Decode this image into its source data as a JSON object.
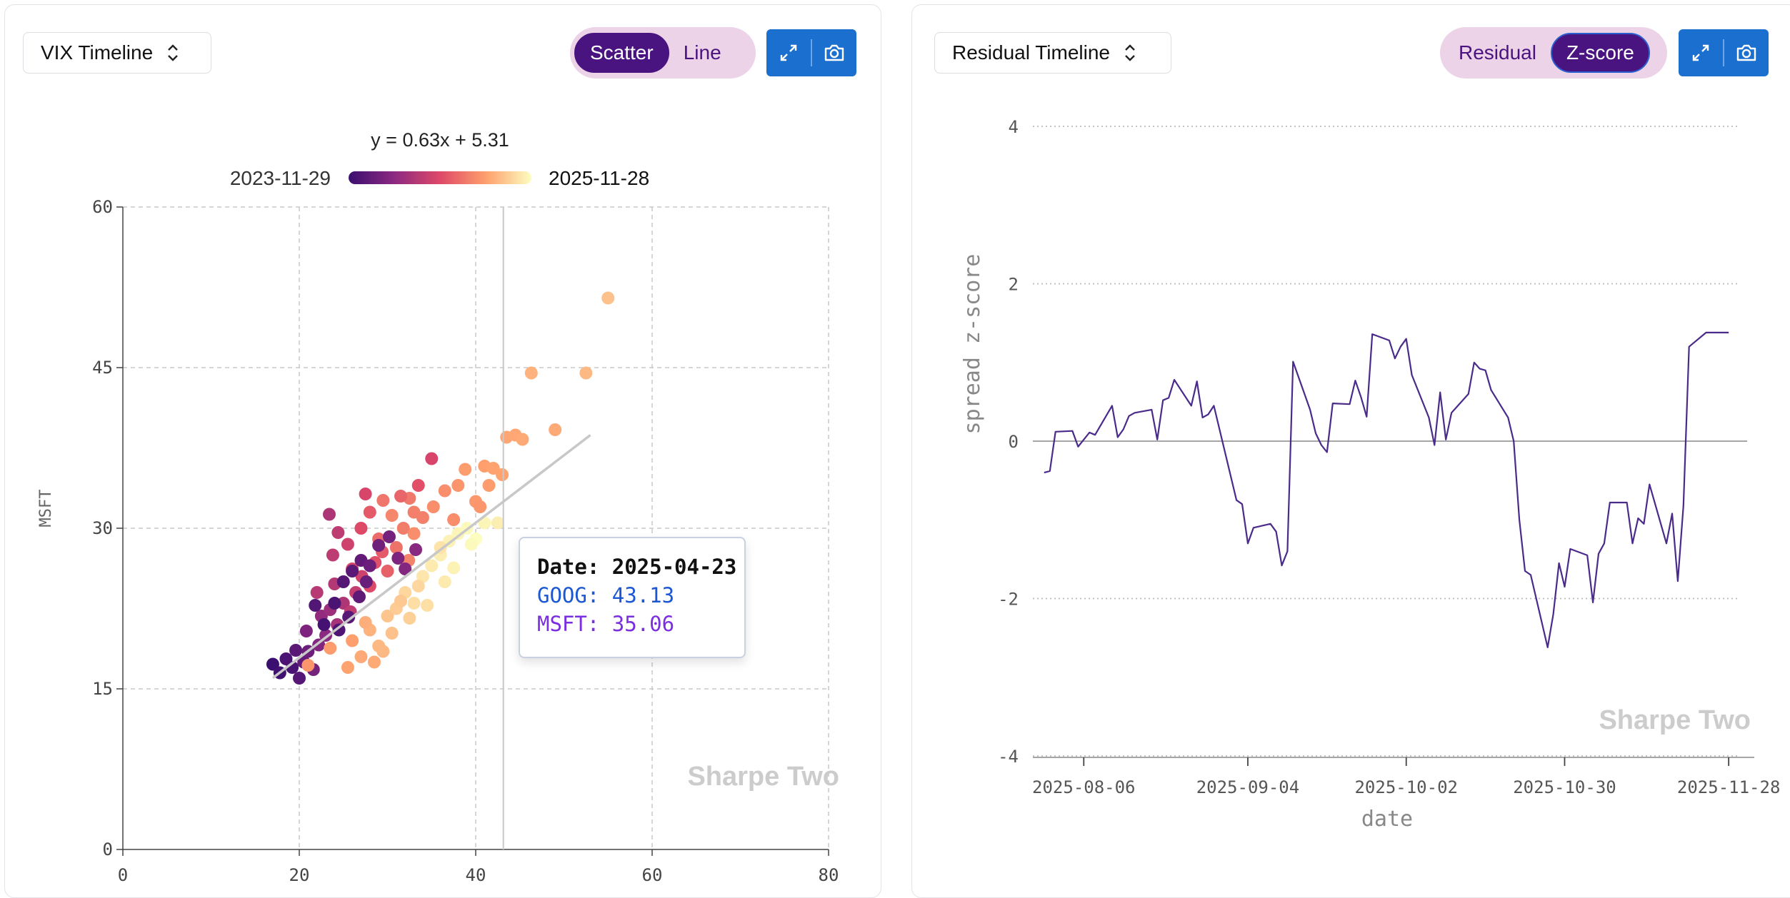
{
  "left_panel": {
    "select_label": "VIX Timeline",
    "toggle": {
      "options": [
        "Scatter",
        "Line"
      ],
      "active": "Scatter"
    },
    "actions": [
      "expand-icon",
      "camera-icon"
    ]
  },
  "right_panel": {
    "select_label": "Residual Timeline",
    "toggle": {
      "options": [
        "Residual",
        "Z-score"
      ],
      "active": "Z-score"
    },
    "actions": [
      "expand-icon",
      "camera-icon"
    ]
  },
  "tooltip": {
    "date_label": "Date: 2025-04-23",
    "goog_label": "GOOG: 43.13",
    "msft_label": "MSFT: 35.06"
  },
  "colors": {
    "accent": "#4a1480",
    "toggle_bg": "#ecd3e8",
    "action_blue": "#1b6fce",
    "line": "#4a2a8a"
  },
  "chart_data": [
    {
      "type": "scatter",
      "title": "y = 0.63x + 5.31",
      "colorbar": {
        "start_label": "2023-11-29",
        "end_label": "2025-11-28",
        "colors": [
          "#3b0f70",
          "#8c2981",
          "#de4968",
          "#fe9f6d",
          "#fcfdbf"
        ]
      },
      "ylabel": "MSFT",
      "xlim": [
        0,
        80
      ],
      "ylim": [
        0,
        60
      ],
      "xticks": [
        0,
        20,
        40,
        60,
        80
      ],
      "yticks": [
        0,
        15,
        30,
        45,
        60
      ],
      "grid": true,
      "regression": {
        "slope": 0.63,
        "intercept": 5.31,
        "x_range": [
          17,
          53
        ]
      },
      "crosshair_x": 43.13,
      "watermark": "Sharpe Two",
      "points": [
        [
          17.0,
          17.3,
          0
        ],
        [
          17.8,
          16.5,
          0.02
        ],
        [
          18.5,
          17.8,
          0.05
        ],
        [
          19.2,
          17.0,
          0.04
        ],
        [
          20.0,
          16.0,
          0.08
        ],
        [
          19.6,
          18.6,
          0.1
        ],
        [
          20.5,
          17.5,
          0.12
        ],
        [
          21.0,
          18.5,
          0.15
        ],
        [
          21.6,
          16.8,
          0.18
        ],
        [
          20.8,
          20.4,
          0.2
        ],
        [
          22.2,
          19.1,
          0.22
        ],
        [
          23.0,
          20.0,
          0.25
        ],
        [
          22.5,
          21.8,
          0.27
        ],
        [
          23.5,
          22.4,
          0.3
        ],
        [
          24.3,
          21.0,
          0.33
        ],
        [
          25.0,
          23.0,
          0.35
        ],
        [
          24.0,
          24.8,
          0.37
        ],
        [
          25.8,
          22.2,
          0.4
        ],
        [
          26.4,
          24.0,
          0.42
        ],
        [
          27.1,
          25.5,
          0.45
        ],
        [
          26.0,
          26.2,
          0.47
        ],
        [
          28.0,
          24.6,
          0.5
        ],
        [
          28.6,
          26.8,
          0.52
        ],
        [
          29.4,
          27.8,
          0.55
        ],
        [
          30.0,
          26.0,
          0.57
        ],
        [
          29.0,
          29.0,
          0.6
        ],
        [
          31.0,
          28.2,
          0.62
        ],
        [
          31.8,
          30.0,
          0.65
        ],
        [
          32.4,
          27.0,
          0.67
        ],
        [
          33.0,
          29.5,
          0.7
        ],
        [
          30.5,
          31.2,
          0.68
        ],
        [
          32.5,
          32.8,
          0.64
        ],
        [
          34.0,
          31.0,
          0.66
        ],
        [
          35.2,
          32.0,
          0.7
        ],
        [
          22.0,
          24.0,
          0.38
        ],
        [
          23.8,
          27.5,
          0.4
        ],
        [
          25.5,
          28.5,
          0.45
        ],
        [
          27.0,
          30.0,
          0.5
        ],
        [
          28.0,
          31.5,
          0.55
        ],
        [
          23.4,
          31.3,
          0.35
        ],
        [
          24.4,
          29.6,
          0.4
        ],
        [
          35.0,
          36.5,
          0.48
        ],
        [
          33.5,
          34.0,
          0.52
        ],
        [
          31.5,
          33.0,
          0.58
        ],
        [
          29.5,
          32.6,
          0.63
        ],
        [
          27.5,
          33.2,
          0.48
        ],
        [
          24.0,
          23.0,
          0.05
        ],
        [
          25.0,
          25.0,
          0.08
        ],
        [
          26.0,
          26.0,
          0.1
        ],
        [
          27.0,
          27.0,
          0.12
        ],
        [
          28.0,
          26.5,
          0.15
        ],
        [
          24.5,
          20.5,
          0.06
        ],
        [
          25.6,
          21.7,
          0.09
        ],
        [
          26.8,
          23.6,
          0.11
        ],
        [
          27.6,
          25.0,
          0.14
        ],
        [
          29.0,
          28.4,
          0.16
        ],
        [
          30.2,
          29.2,
          0.18
        ],
        [
          31.2,
          27.2,
          0.2
        ],
        [
          32.0,
          26.2,
          0.22
        ],
        [
          33.2,
          28.0,
          0.24
        ],
        [
          22.8,
          21.0,
          0.03
        ],
        [
          21.8,
          22.8,
          0.07
        ],
        [
          26.0,
          19.5,
          0.75
        ],
        [
          27.0,
          18.0,
          0.78
        ],
        [
          28.0,
          20.5,
          0.8
        ],
        [
          29.0,
          19.0,
          0.82
        ],
        [
          30.0,
          21.8,
          0.85
        ],
        [
          31.0,
          22.5,
          0.87
        ],
        [
          32.0,
          24.0,
          0.9
        ],
        [
          33.0,
          23.0,
          0.92
        ],
        [
          34.0,
          25.5,
          0.94
        ],
        [
          35.0,
          26.5,
          0.95
        ],
        [
          36.0,
          27.5,
          0.96
        ],
        [
          37.0,
          28.8,
          0.97
        ],
        [
          38.0,
          29.5,
          0.98
        ],
        [
          39.0,
          30.0,
          0.99
        ],
        [
          40.0,
          29.0,
          1.0
        ],
        [
          41.0,
          30.5,
          0.98
        ],
        [
          42.5,
          30.5,
          0.96
        ],
        [
          29.5,
          18.5,
          0.82
        ],
        [
          30.5,
          20.2,
          0.84
        ],
        [
          31.5,
          23.2,
          0.86
        ],
        [
          32.5,
          21.6,
          0.88
        ],
        [
          33.5,
          24.6,
          0.9
        ],
        [
          34.5,
          22.8,
          0.92
        ],
        [
          36.5,
          25.0,
          0.95
        ],
        [
          37.5,
          26.3,
          0.97
        ],
        [
          28.5,
          17.5,
          0.78
        ],
        [
          25.5,
          17.0,
          0.76
        ],
        [
          27.5,
          21.2,
          0.79
        ],
        [
          23.5,
          18.8,
          0.74
        ],
        [
          21.0,
          17.2,
          0.72
        ],
        [
          36.0,
          28.2,
          0.93
        ],
        [
          39.5,
          28.5,
          0.99
        ],
        [
          33.0,
          31.5,
          0.66
        ],
        [
          36.5,
          33.5,
          0.7
        ],
        [
          38.0,
          34.0,
          0.72
        ],
        [
          38.8,
          35.5,
          0.74
        ],
        [
          40.0,
          32.5,
          0.73
        ],
        [
          41.5,
          34.0,
          0.74
        ],
        [
          43.0,
          35.0,
          0.76
        ],
        [
          41.0,
          35.8,
          0.75
        ],
        [
          42.0,
          35.6,
          0.76
        ],
        [
          43.5,
          38.5,
          0.77
        ],
        [
          44.5,
          38.7,
          0.77
        ],
        [
          45.3,
          38.3,
          0.78
        ],
        [
          49.0,
          39.2,
          0.78
        ],
        [
          46.3,
          44.5,
          0.8
        ],
        [
          52.5,
          44.5,
          0.82
        ],
        [
          55.0,
          51.5,
          0.84
        ],
        [
          40.5,
          32.0,
          0.72
        ],
        [
          37.5,
          30.8,
          0.7
        ]
      ]
    },
    {
      "type": "line",
      "ylabel": "spread z-score",
      "xlabel": "date",
      "ylim": [
        -4,
        4
      ],
      "yticks": [
        -4,
        -2,
        0,
        2,
        4
      ],
      "xticks": [
        "2025-08-06",
        "2025-09-04",
        "2025-10-02",
        "2025-10-30",
        "2025-11-28"
      ],
      "grid": "horizontal-dotted",
      "watermark": "Sharpe Two",
      "x_start": "2025-07-30",
      "x": [
        "2025-07-30",
        "2025-07-31",
        "2025-08-01",
        "2025-08-04",
        "2025-08-05",
        "2025-08-06",
        "2025-08-07",
        "2025-08-08",
        "2025-08-11",
        "2025-08-12",
        "2025-08-13",
        "2025-08-14",
        "2025-08-15",
        "2025-08-18",
        "2025-08-19",
        "2025-08-20",
        "2025-08-21",
        "2025-08-22",
        "2025-08-25",
        "2025-08-26",
        "2025-08-27",
        "2025-08-28",
        "2025-08-29",
        "2025-09-02",
        "2025-09-03",
        "2025-09-04",
        "2025-09-05",
        "2025-09-08",
        "2025-09-09",
        "2025-09-10",
        "2025-09-11",
        "2025-09-12",
        "2025-09-15",
        "2025-09-16",
        "2025-09-17",
        "2025-09-18",
        "2025-09-19",
        "2025-09-22",
        "2025-09-23",
        "2025-09-24",
        "2025-09-25",
        "2025-09-26",
        "2025-09-29",
        "2025-09-30",
        "2025-10-01",
        "2025-10-02",
        "2025-10-03",
        "2025-10-06",
        "2025-10-07",
        "2025-10-08",
        "2025-10-09",
        "2025-10-10",
        "2025-10-13",
        "2025-10-14",
        "2025-10-15",
        "2025-10-16",
        "2025-10-17",
        "2025-10-20",
        "2025-10-21",
        "2025-10-22",
        "2025-10-23",
        "2025-10-24",
        "2025-10-27",
        "2025-10-28",
        "2025-10-29",
        "2025-10-30",
        "2025-10-31",
        "2025-11-03",
        "2025-11-04",
        "2025-11-05",
        "2025-11-06",
        "2025-11-07",
        "2025-11-10",
        "2025-11-11",
        "2025-11-12",
        "2025-11-13",
        "2025-11-14",
        "2025-11-17",
        "2025-11-18",
        "2025-11-19",
        "2025-11-20",
        "2025-11-21",
        "2025-11-24",
        "2025-11-25",
        "2025-11-26",
        "2025-11-28"
      ],
      "y": [
        -0.4,
        -0.38,
        0.12,
        0.13,
        -0.07,
        0.02,
        0.11,
        0.08,
        0.45,
        0.05,
        0.15,
        0.32,
        0.36,
        0.4,
        0.02,
        0.52,
        0.55,
        0.78,
        0.45,
        0.76,
        0.3,
        0.34,
        0.45,
        -0.75,
        -0.8,
        -1.3,
        -1.1,
        -1.05,
        -1.15,
        -1.58,
        -1.4,
        1.01,
        0.4,
        0.1,
        -0.05,
        -0.14,
        0.48,
        0.47,
        0.77,
        0.56,
        0.31,
        1.36,
        1.28,
        1.05,
        1.2,
        1.3,
        0.84,
        0.3,
        -0.05,
        0.62,
        0.02,
        0.36,
        0.6,
        1.0,
        0.92,
        0.9,
        0.65,
        0.3,
        0.0,
        -1.0,
        -1.65,
        -1.7,
        -2.62,
        -2.2,
        -1.55,
        -1.85,
        -1.37,
        -1.45,
        -2.05,
        -1.43,
        -1.3,
        -0.78,
        -0.78,
        -1.3,
        -0.98,
        -1.05,
        -0.55,
        -1.3,
        -0.92,
        -1.78,
        -0.82,
        1.2,
        1.38,
        1.38,
        1.38,
        1.38
      ]
    }
  ]
}
